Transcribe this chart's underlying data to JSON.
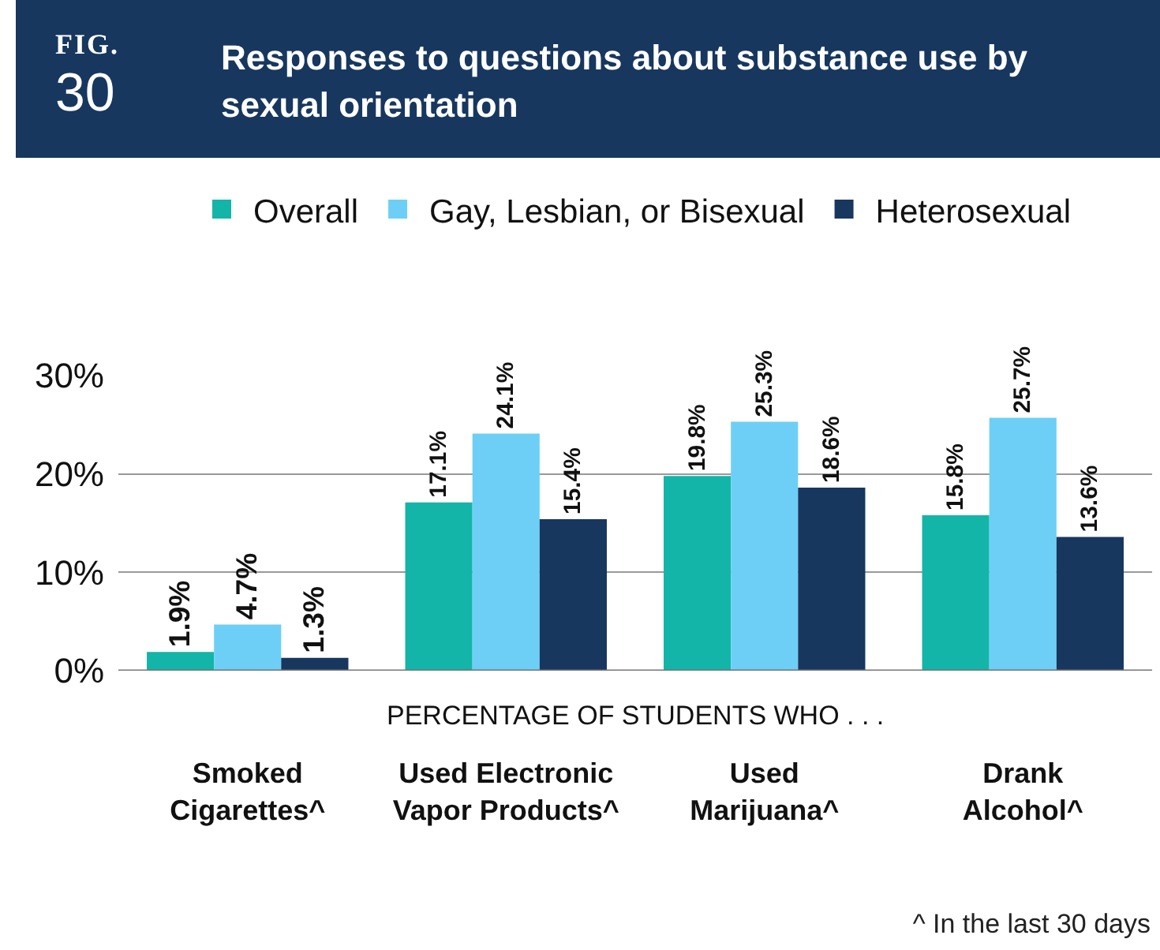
{
  "chart_data": {
    "type": "bar",
    "title": "Responses to questions about substance use by sexual orientation",
    "xlabel": "PERCENTAGE OF STUDENTS WHO . . .",
    "annotations": [
      "FIG.",
      "30",
      "^  In the last 30 days"
    ],
    "categories": [
      "Smoked Cigarettes^",
      "Used Electronic Vapor Products^",
      "Used Marijuana^",
      "Drank Alcohol^"
    ],
    "series": [
      {
        "name": "Overall",
        "color": "#13b5a8",
        "values": [
          1.9,
          17.1,
          19.8,
          15.8
        ],
        "value_labels": [
          "1.9%",
          "17.1%",
          "19.8%",
          "15.8%"
        ]
      },
      {
        "name": "Gay, Lesbian, or Bisexual",
        "color": "#6dcff6",
        "values": [
          4.7,
          24.1,
          25.3,
          25.7
        ],
        "value_labels": [
          "4.7%",
          "24.1%",
          "25.3%",
          "25.7%"
        ]
      },
      {
        "name": "Heterosexual",
        "color": "#17375e",
        "values": [
          1.3,
          15.4,
          18.6,
          13.6
        ],
        "value_labels": [
          "1.3%",
          "15.4%",
          "18.6%",
          "13.6%"
        ]
      }
    ],
    "ylim": [
      0,
      30
    ],
    "yticks": [
      {
        "value": 0,
        "label": "0%"
      },
      {
        "value": 10,
        "label": "10%"
      },
      {
        "value": 20,
        "label": "20%"
      },
      {
        "value": 30,
        "label": "30%"
      }
    ],
    "grid": "y",
    "legend": "top"
  }
}
